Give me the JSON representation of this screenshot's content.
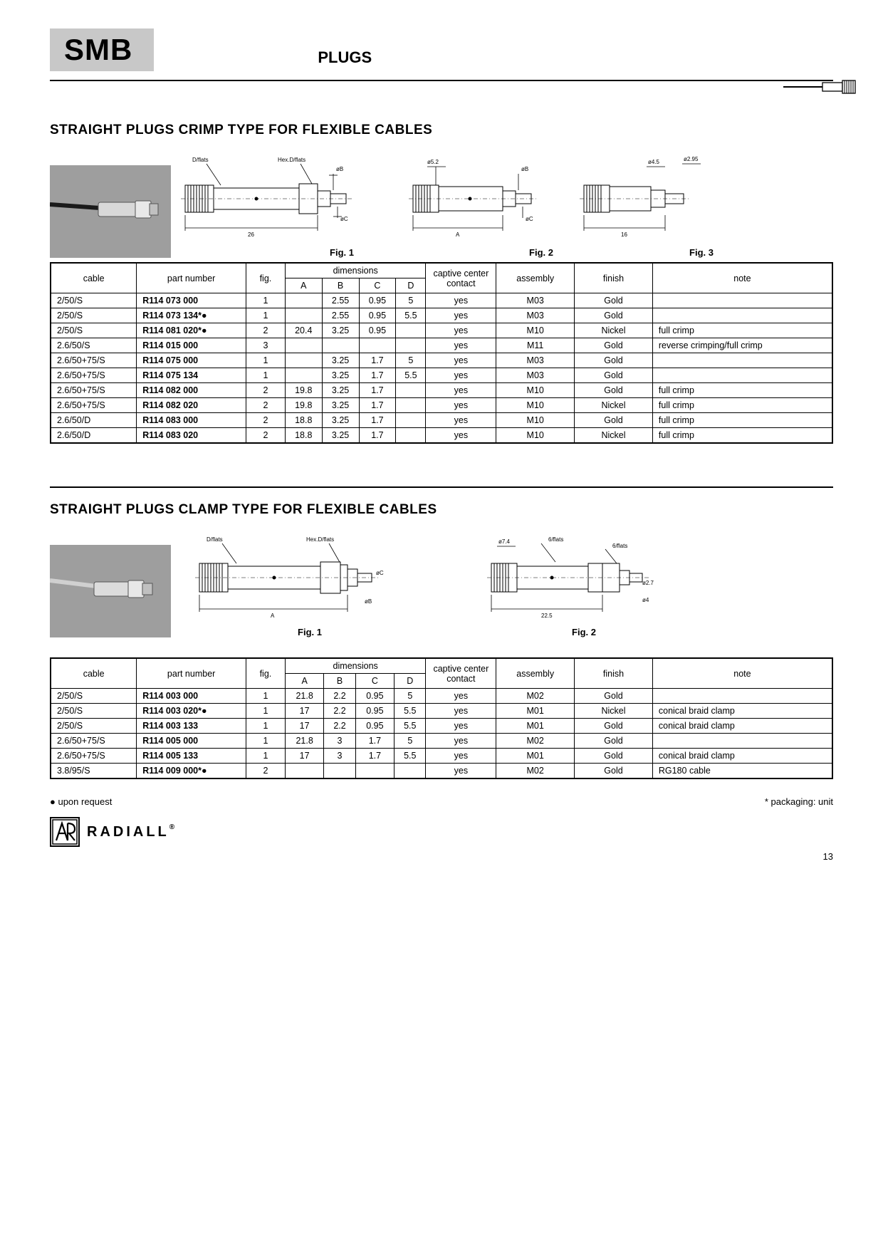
{
  "header": {
    "brand": "SMB",
    "category": "PLUGS"
  },
  "section1": {
    "title": "STRAIGHT PLUGS CRIMP TYPE FOR FLEXIBLE CABLES",
    "figLabels": [
      "Fig. 1",
      "Fig. 2",
      "Fig. 3"
    ],
    "diagrams": {
      "fig1": {
        "labels": [
          "D/flats",
          "Hex.D/flats",
          "øB",
          "øC"
        ],
        "dim_len": "26"
      },
      "fig2": {
        "labels": [
          "ø5.2",
          "øB",
          "øC"
        ],
        "dim_len": "A"
      },
      "fig3": {
        "labels": [
          "ø4.5",
          "ø2.95"
        ],
        "dim_len": "16"
      }
    },
    "columns": [
      "cable",
      "part number",
      "fig.",
      "A",
      "B",
      "C",
      "D",
      "captive center contact",
      "assembly",
      "finish",
      "note"
    ],
    "dimGroupLabel": "dimensions",
    "rows": [
      {
        "cable": "2/50/S",
        "pn": "R114 073 000",
        "fig": "1",
        "A": "",
        "B": "2.55",
        "C": "0.95",
        "D": "5",
        "ccc": "yes",
        "asm": "M03",
        "fin": "Gold",
        "note": ""
      },
      {
        "cable": "2/50/S",
        "pn": "R114 073 134*●",
        "fig": "1",
        "A": "",
        "B": "2.55",
        "C": "0.95",
        "D": "5.5",
        "ccc": "yes",
        "asm": "M03",
        "fin": "Gold",
        "note": ""
      },
      {
        "cable": "2/50/S",
        "pn": "R114 081 020*●",
        "fig": "2",
        "A": "20.4",
        "B": "3.25",
        "C": "0.95",
        "D": "",
        "ccc": "yes",
        "asm": "M10",
        "fin": "Nickel",
        "note": "full crimp"
      },
      {
        "cable": "2.6/50/S",
        "pn": "R114 015 000",
        "fig": "3",
        "A": "",
        "B": "",
        "C": "",
        "D": "",
        "ccc": "yes",
        "asm": "M11",
        "fin": "Gold",
        "note": "reverse crimping/full crimp"
      },
      {
        "cable": "2.6/50+75/S",
        "pn": "R114 075 000",
        "fig": "1",
        "A": "",
        "B": "3.25",
        "C": "1.7",
        "D": "5",
        "ccc": "yes",
        "asm": "M03",
        "fin": "Gold",
        "note": ""
      },
      {
        "cable": "2.6/50+75/S",
        "pn": "R114 075 134",
        "fig": "1",
        "A": "",
        "B": "3.25",
        "C": "1.7",
        "D": "5.5",
        "ccc": "yes",
        "asm": "M03",
        "fin": "Gold",
        "note": ""
      },
      {
        "cable": "2.6/50+75/S",
        "pn": "R114 082 000",
        "fig": "2",
        "A": "19.8",
        "B": "3.25",
        "C": "1.7",
        "D": "",
        "ccc": "yes",
        "asm": "M10",
        "fin": "Gold",
        "note": "full crimp"
      },
      {
        "cable": "2.6/50+75/S",
        "pn": "R114 082 020",
        "fig": "2",
        "A": "19.8",
        "B": "3.25",
        "C": "1.7",
        "D": "",
        "ccc": "yes",
        "asm": "M10",
        "fin": "Nickel",
        "note": "full crimp"
      },
      {
        "cable": "2.6/50/D",
        "pn": "R114 083 000",
        "fig": "2",
        "A": "18.8",
        "B": "3.25",
        "C": "1.7",
        "D": "",
        "ccc": "yes",
        "asm": "M10",
        "fin": "Gold",
        "note": "full crimp"
      },
      {
        "cable": "2.6/50/D",
        "pn": "R114 083 020",
        "fig": "2",
        "A": "18.8",
        "B": "3.25",
        "C": "1.7",
        "D": "",
        "ccc": "yes",
        "asm": "M10",
        "fin": "Nickel",
        "note": "full crimp"
      }
    ]
  },
  "section2": {
    "title": "STRAIGHT PLUGS CLAMP TYPE FOR FLEXIBLE CABLES",
    "figLabels": [
      "Fig. 1",
      "Fig. 2"
    ],
    "diagrams": {
      "fig1": {
        "labels": [
          "D/flats",
          "Hex.D/flats",
          "øC",
          "øB"
        ],
        "dim_len": "A"
      },
      "fig2": {
        "labels": [
          "ø7.4",
          "6/flats",
          "6/flats",
          "ø2.7",
          "ø4"
        ],
        "dim_len": "22.5"
      }
    },
    "columns": [
      "cable",
      "part number",
      "fig.",
      "A",
      "B",
      "C",
      "D",
      "captive center contact",
      "assembly",
      "finish",
      "note"
    ],
    "dimGroupLabel": "dimensions",
    "rows": [
      {
        "cable": "2/50/S",
        "pn": "R114 003 000",
        "fig": "1",
        "A": "21.8",
        "B": "2.2",
        "C": "0.95",
        "D": "5",
        "ccc": "yes",
        "asm": "M02",
        "fin": "Gold",
        "note": ""
      },
      {
        "cable": "2/50/S",
        "pn": "R114 003 020*●",
        "fig": "1",
        "A": "17",
        "B": "2.2",
        "C": "0.95",
        "D": "5.5",
        "ccc": "yes",
        "asm": "M01",
        "fin": "Nickel",
        "note": "conical braid clamp"
      },
      {
        "cable": "2/50/S",
        "pn": "R114 003 133",
        "fig": "1",
        "A": "17",
        "B": "2.2",
        "C": "0.95",
        "D": "5.5",
        "ccc": "yes",
        "asm": "M01",
        "fin": "Gold",
        "note": "conical braid clamp"
      },
      {
        "cable": "2.6/50+75/S",
        "pn": "R114 005 000",
        "fig": "1",
        "A": "21.8",
        "B": "3",
        "C": "1.7",
        "D": "5",
        "ccc": "yes",
        "asm": "M02",
        "fin": "Gold",
        "note": ""
      },
      {
        "cable": "2.6/50+75/S",
        "pn": "R114 005 133",
        "fig": "1",
        "A": "17",
        "B": "3",
        "C": "1.7",
        "D": "5.5",
        "ccc": "yes",
        "asm": "M01",
        "fin": "Gold",
        "note": "conical braid clamp"
      },
      {
        "cable": "3.8/95/S",
        "pn": "R114 009 000*●",
        "fig": "2",
        "A": "",
        "B": "",
        "C": "",
        "D": "",
        "ccc": "yes",
        "asm": "M02",
        "fin": "Gold",
        "note": "RG180 cable"
      }
    ]
  },
  "footer": {
    "leftNote": "● upon request",
    "rightNote": "* packaging: unit",
    "brandName": "RADIALL",
    "pageNumber": "13"
  },
  "colors": {
    "grayBox": "#c8c8c8",
    "photoBg": "#a8a8a8",
    "line": "#000000"
  }
}
